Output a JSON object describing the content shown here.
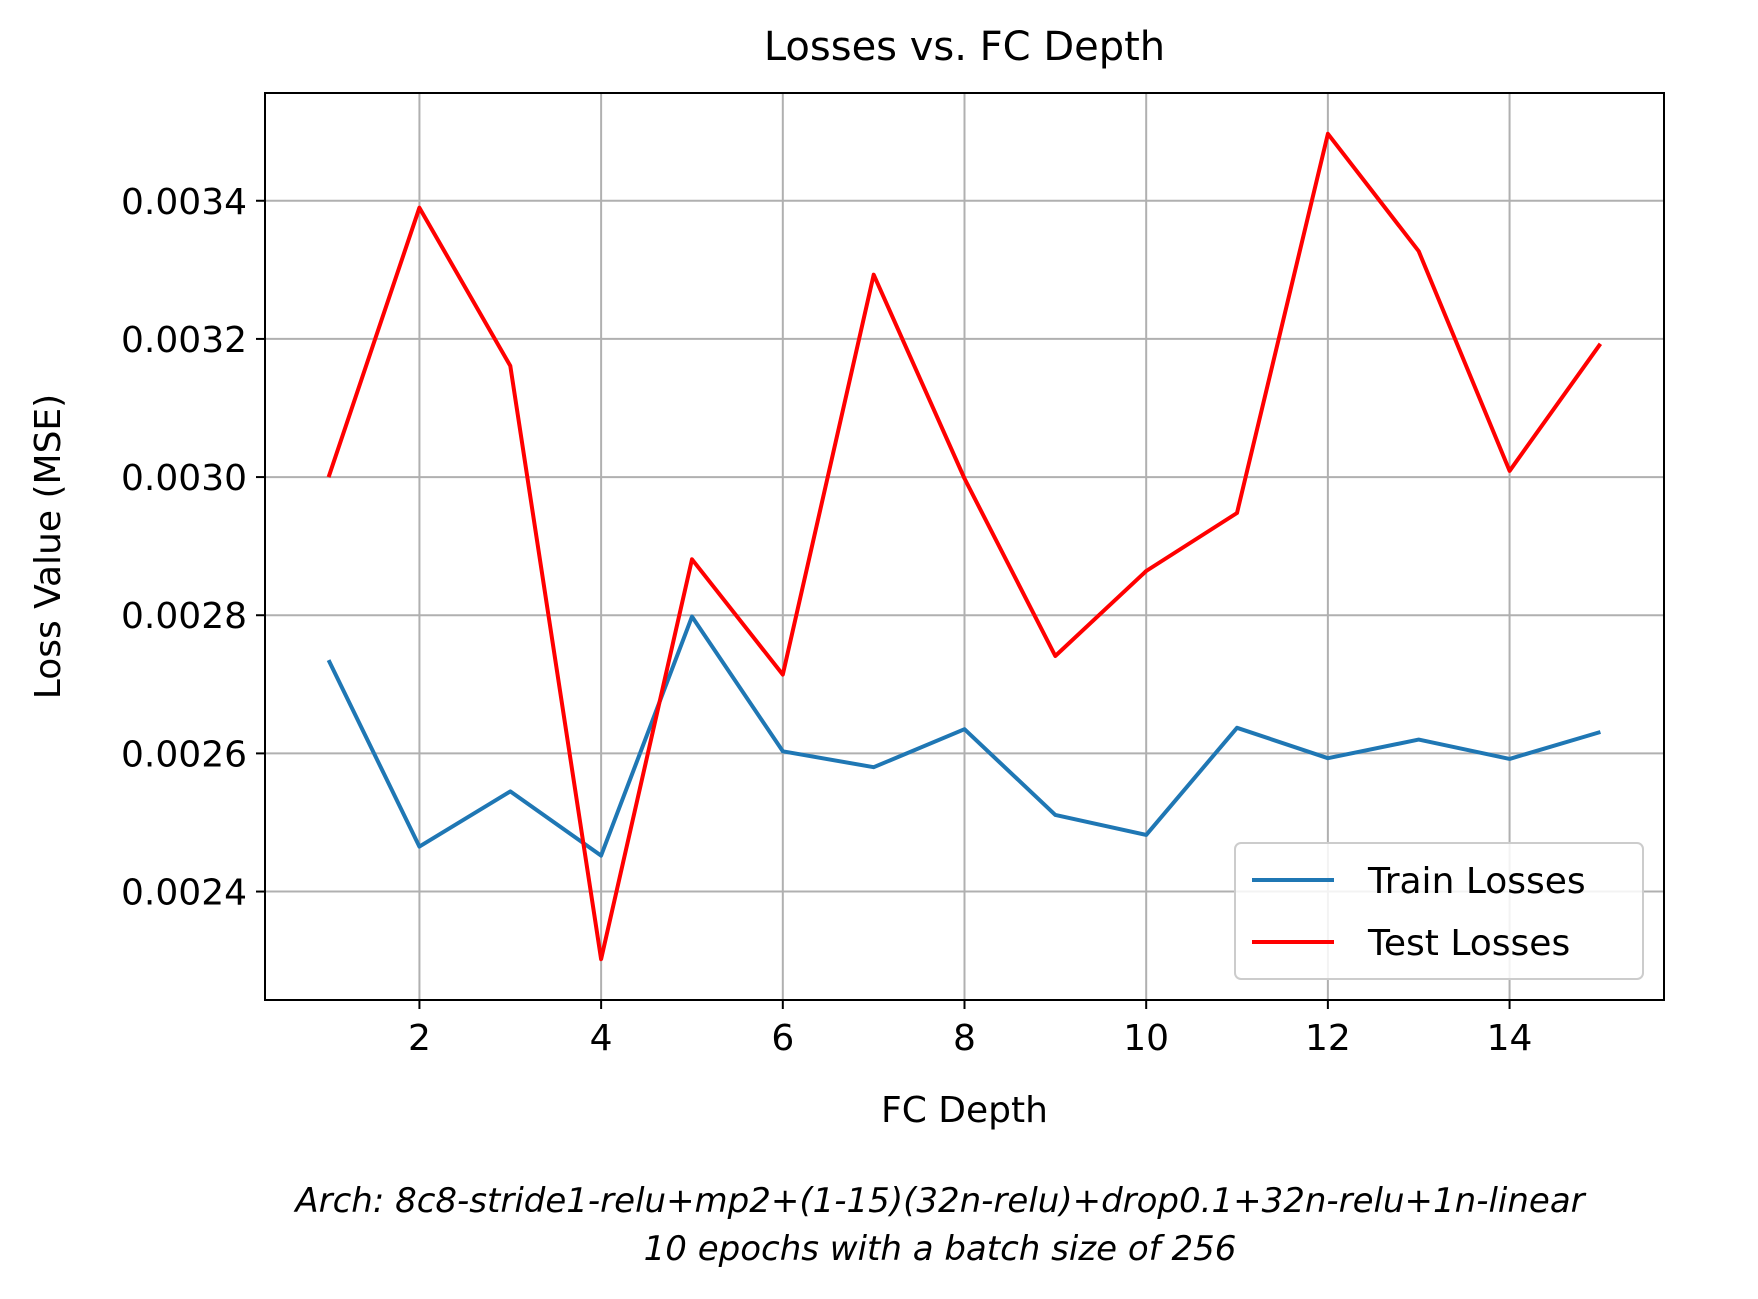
{
  "chart_data": {
    "type": "line",
    "title": "Losses vs. FC Depth",
    "xlabel": "FC Depth",
    "ylabel": "Loss Value (MSE)",
    "x": [
      1,
      2,
      3,
      4,
      5,
      6,
      7,
      8,
      9,
      10,
      11,
      12,
      13,
      14,
      15
    ],
    "xlim": [
      0.3,
      15.7
    ],
    "ylim": [
      0.002243,
      0.003556
    ],
    "xticks": [
      2,
      4,
      6,
      8,
      10,
      12,
      14
    ],
    "xtick_labels": [
      "2",
      "4",
      "6",
      "8",
      "10",
      "12",
      "14"
    ],
    "yticks": [
      0.0024,
      0.0026,
      0.0028,
      0.003,
      0.0032,
      0.0034
    ],
    "ytick_labels": [
      "0.0024",
      "0.0026",
      "0.0028",
      "0.0030",
      "0.0032",
      "0.0034"
    ],
    "grid": true,
    "legend_position": "lower-right",
    "series": [
      {
        "name": "Train Losses",
        "color": "#1f77b4",
        "values": [
          0.002735,
          0.002465,
          0.002545,
          0.002452,
          0.002798,
          0.002603,
          0.00258,
          0.002635,
          0.002511,
          0.002482,
          0.002637,
          0.002593,
          0.00262,
          0.002592,
          0.002631
        ]
      },
      {
        "name": "Test Losses",
        "color": "#ff0000",
        "values": [
          0.003,
          0.00339,
          0.003161,
          0.002302,
          0.002881,
          0.002714,
          0.003293,
          0.002998,
          0.002741,
          0.002864,
          0.002948,
          0.003497,
          0.003327,
          0.003009,
          0.003193
        ]
      }
    ],
    "caption_lines": [
      "Arch: 8c8-stride1-relu+mp2+(1-15)(32n-relu)+drop0.1+32n-relu+1n-linear",
      "10 epochs with a batch size of 256"
    ]
  }
}
